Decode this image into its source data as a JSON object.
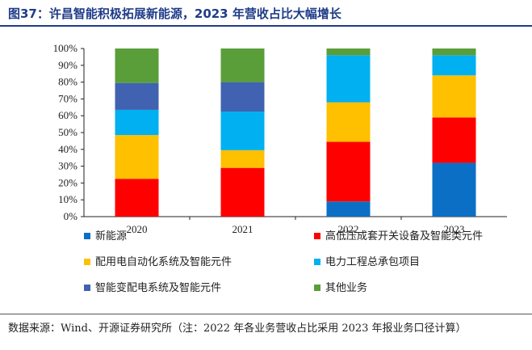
{
  "header": {
    "title": "图37：许昌智能积极拓展新能源，2023 年营收占比大幅增长"
  },
  "footer": {
    "source": "数据来源：Wind、开源证券研究所（注：2022 年各业务营收占比采用 2023 年报业务口径计算）"
  },
  "chart_data": {
    "type": "bar",
    "stacked": true,
    "categories": [
      "2020",
      "2021",
      "2022",
      "2023"
    ],
    "ylim": [
      0,
      100
    ],
    "yticks": [
      "0%",
      "10%",
      "20%",
      "30%",
      "40%",
      "50%",
      "60%",
      "70%",
      "80%",
      "90%",
      "100%"
    ],
    "legend_position": "bottom",
    "series": [
      {
        "name": "新能源",
        "color": "#0b6fc5",
        "values": [
          0,
          0,
          9,
          32
        ]
      },
      {
        "name": "高低压成套开关设备及智能类元件",
        "color": "#ff0000",
        "values": [
          22.5,
          29,
          35.5,
          27
        ]
      },
      {
        "name": "配用电自动化系统及智能元件",
        "color": "#ffc000",
        "values": [
          26,
          10.5,
          23.5,
          25
        ]
      },
      {
        "name": "电力工程总承包项目",
        "color": "#00b0f0",
        "values": [
          15,
          23,
          28,
          12
        ]
      },
      {
        "name": "智能变配电系统及智能元件",
        "color": "#4062b0",
        "values": [
          16,
          17.5,
          0,
          0
        ]
      },
      {
        "name": "其他业务",
        "color": "#5a9e3a",
        "values": [
          20.5,
          20,
          4,
          4
        ]
      }
    ]
  }
}
